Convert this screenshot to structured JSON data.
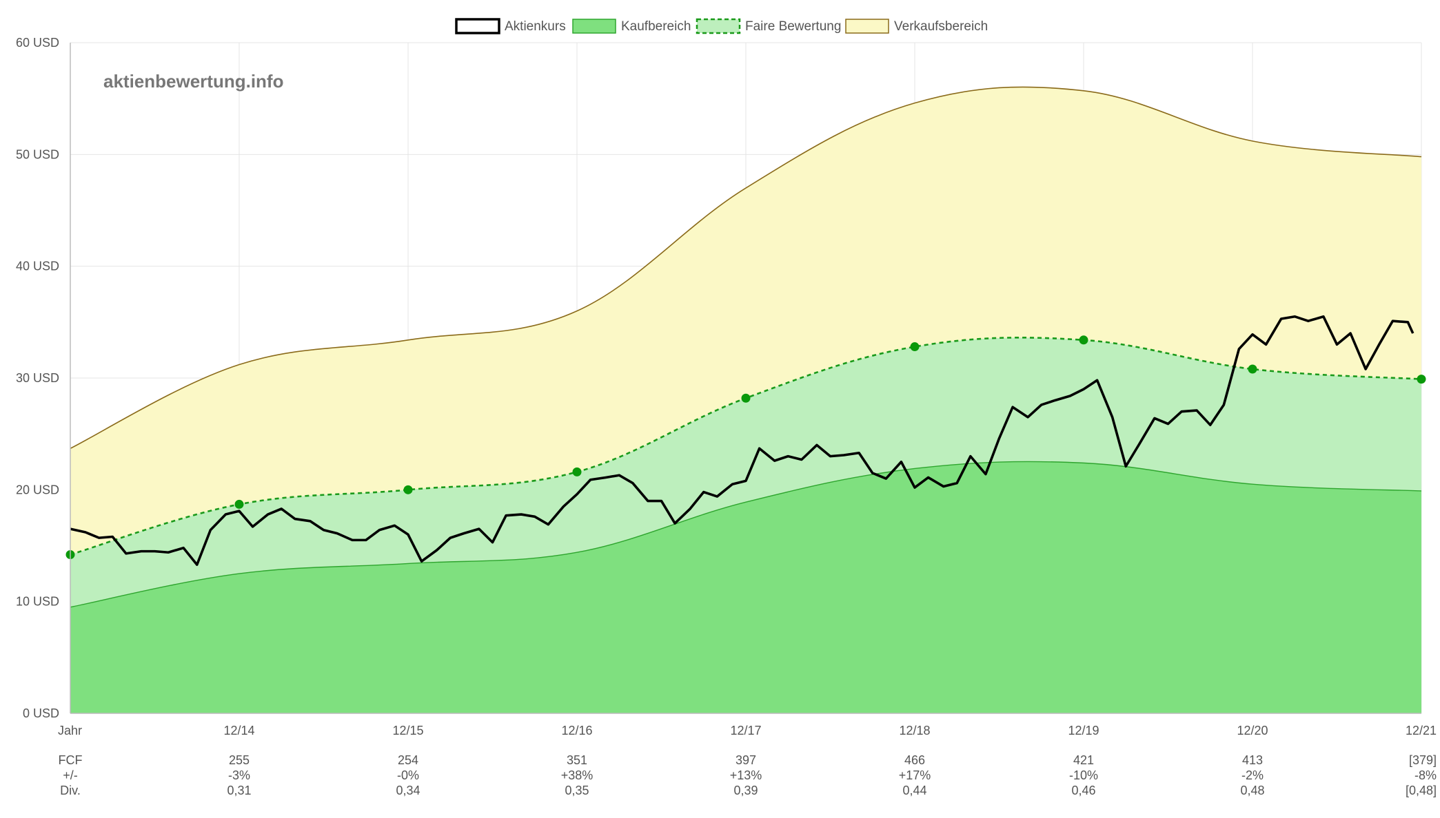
{
  "watermark": "aktienbewertung.info",
  "legend": [
    {
      "name": "Aktienkurs",
      "key": "price"
    },
    {
      "name": "Kaufbereich",
      "key": "buy"
    },
    {
      "name": "Faire Bewertung",
      "key": "fair"
    },
    {
      "name": "Verkaufsbereich",
      "key": "sell"
    }
  ],
  "colors": {
    "price": "#000000",
    "buy_fill": "#7fe07f",
    "buy_line": "#2ea52e",
    "fair_fill": "#bdefbd",
    "fair_line": "#1a9a1a",
    "fair_point": "#0a990a",
    "sell_fill": "#fbf8c6",
    "sell_line": "#8a6a1a",
    "grid": "#e4e4e4",
    "axis": "#bbbbbb"
  },
  "y_axis": {
    "ticks": [
      "0 USD",
      "10 USD",
      "20 USD",
      "30 USD",
      "40 USD",
      "50 USD",
      "60 USD"
    ],
    "values": [
      0,
      10,
      20,
      30,
      40,
      50,
      60
    ]
  },
  "x_axis": {
    "ticks": [
      "Jahr",
      "12/14",
      "12/15",
      "12/16",
      "12/17",
      "12/18",
      "12/19",
      "12/20",
      "12/21"
    ]
  },
  "table": {
    "rows": [
      {
        "label": "FCF",
        "values": [
          "255",
          "254",
          "351",
          "397",
          "466",
          "421",
          "413",
          "[379]"
        ]
      },
      {
        "label": "+/-",
        "values": [
          "-3%",
          "-0%",
          "+38%",
          "+13%",
          "+17%",
          "-10%",
          "-2%",
          "-8%"
        ]
      },
      {
        "label": "Div.",
        "values": [
          "0,31",
          "0,34",
          "0,35",
          "0,39",
          "0,44",
          "0,46",
          "0,48",
          "[0,48]"
        ]
      }
    ]
  },
  "chart_data": {
    "type": "area",
    "x_positions": [
      0,
      1,
      2,
      3,
      4,
      5,
      6,
      7,
      8
    ],
    "ylim": [
      0,
      60
    ],
    "grid": true,
    "legend_position": "top-center",
    "series": [
      {
        "name": "Faire Bewertung",
        "values": [
          14.2,
          18.7,
          20.0,
          21.6,
          28.2,
          32.8,
          33.4,
          30.8,
          29.9
        ]
      },
      {
        "name": "Kaufbereich",
        "values": [
          9.5,
          12.5,
          13.4,
          14.4,
          18.9,
          21.9,
          22.4,
          20.5,
          19.9
        ]
      },
      {
        "name": "Verkaufsbereich",
        "values": [
          23.7,
          31.2,
          33.4,
          36.0,
          47.0,
          54.6,
          55.7,
          51.2,
          49.8
        ]
      },
      {
        "name": "Aktienkurs",
        "x": [
          0,
          0.09,
          0.17,
          0.25,
          0.33,
          0.42,
          0.5,
          0.58,
          0.67,
          0.75,
          0.83,
          0.92,
          1.0,
          1.08,
          1.17,
          1.25,
          1.33,
          1.42,
          1.5,
          1.58,
          1.67,
          1.75,
          1.83,
          1.92,
          2.0,
          2.08,
          2.17,
          2.25,
          2.33,
          2.42,
          2.5,
          2.58,
          2.67,
          2.75,
          2.83,
          2.92,
          3.0,
          3.08,
          3.17,
          3.25,
          3.33,
          3.42,
          3.5,
          3.58,
          3.67,
          3.75,
          3.83,
          3.92,
          4.0,
          4.08,
          4.17,
          4.25,
          4.33,
          4.42,
          4.5,
          4.58,
          4.67,
          4.75,
          4.83,
          4.92,
          5.0,
          5.08,
          5.17,
          5.25,
          5.33,
          5.42,
          5.5,
          5.58,
          5.67,
          5.75,
          5.83,
          5.92,
          6.0,
          6.08,
          6.17,
          6.25,
          6.33,
          6.42,
          6.5,
          6.58,
          6.67,
          6.75,
          6.83,
          6.92,
          7.0,
          7.08,
          7.17,
          7.25,
          7.33,
          7.42,
          7.5,
          7.58,
          7.67,
          7.75,
          7.83,
          7.92,
          7.95
        ],
        "values": [
          16.5,
          16.2,
          15.7,
          15.8,
          14.3,
          14.5,
          14.5,
          14.4,
          14.8,
          13.3,
          16.4,
          17.8,
          18.1,
          16.7,
          17.8,
          18.3,
          17.4,
          17.2,
          16.4,
          16.1,
          15.5,
          15.5,
          16.4,
          16.8,
          16.0,
          13.6,
          14.6,
          15.7,
          16.1,
          16.5,
          15.3,
          17.7,
          17.8,
          17.6,
          16.9,
          18.5,
          19.6,
          20.9,
          21.1,
          21.3,
          20.6,
          19.0,
          19.0,
          17.0,
          18.3,
          19.8,
          19.4,
          20.5,
          20.8,
          23.7,
          22.6,
          23.0,
          22.7,
          24.0,
          23.0,
          23.1,
          23.3,
          21.5,
          21.0,
          22.5,
          20.2,
          21.1,
          20.3,
          20.6,
          23.0,
          21.4,
          24.6,
          27.4,
          26.5,
          27.6,
          28.0,
          28.4,
          29.0,
          29.8,
          26.5,
          22.1,
          24.1,
          26.4,
          25.9,
          27.0,
          27.1,
          25.8,
          27.6,
          32.6,
          33.9,
          33.0,
          35.3,
          35.5,
          35.1,
          35.5,
          33.0,
          34.0,
          30.8,
          33.0,
          35.1,
          35.0,
          34.0
        ]
      }
    ]
  }
}
